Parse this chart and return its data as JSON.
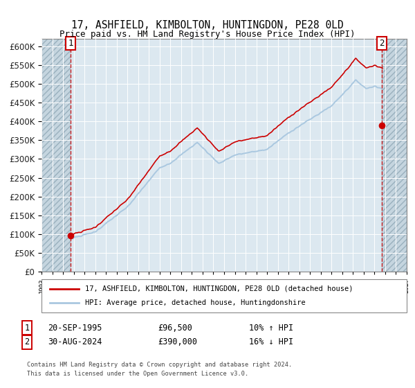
{
  "title": "17, ASHFIELD, KIMBOLTON, HUNTINGDON, PE28 0LD",
  "subtitle": "Price paid vs. HM Land Registry's House Price Index (HPI)",
  "legend_line1": "17, ASHFIELD, KIMBOLTON, HUNTINGDON, PE28 0LD (detached house)",
  "legend_line2": "HPI: Average price, detached house, Huntingdonshire",
  "annotation1_label": "1",
  "annotation1_date": "20-SEP-1995",
  "annotation1_price": "£96,500",
  "annotation1_hpi": "10% ↑ HPI",
  "annotation2_label": "2",
  "annotation2_date": "30-AUG-2024",
  "annotation2_price": "£390,000",
  "annotation2_hpi": "16% ↓ HPI",
  "footer": "Contains HM Land Registry data © Crown copyright and database right 2024.\nThis data is licensed under the Open Government Licence v3.0.",
  "sale1_year": 1995.72,
  "sale1_value": 96500,
  "sale2_year": 2024.66,
  "sale2_value": 390000,
  "hpi_color": "#aac8e0",
  "sale_color": "#cc0000",
  "background_plot": "#dce8f0",
  "hatch_face": "#c5d5df",
  "grid_color": "#ffffff",
  "ylim_min": 0,
  "ylim_max": 620000,
  "xlim_min": 1993,
  "xlim_max": 2027
}
